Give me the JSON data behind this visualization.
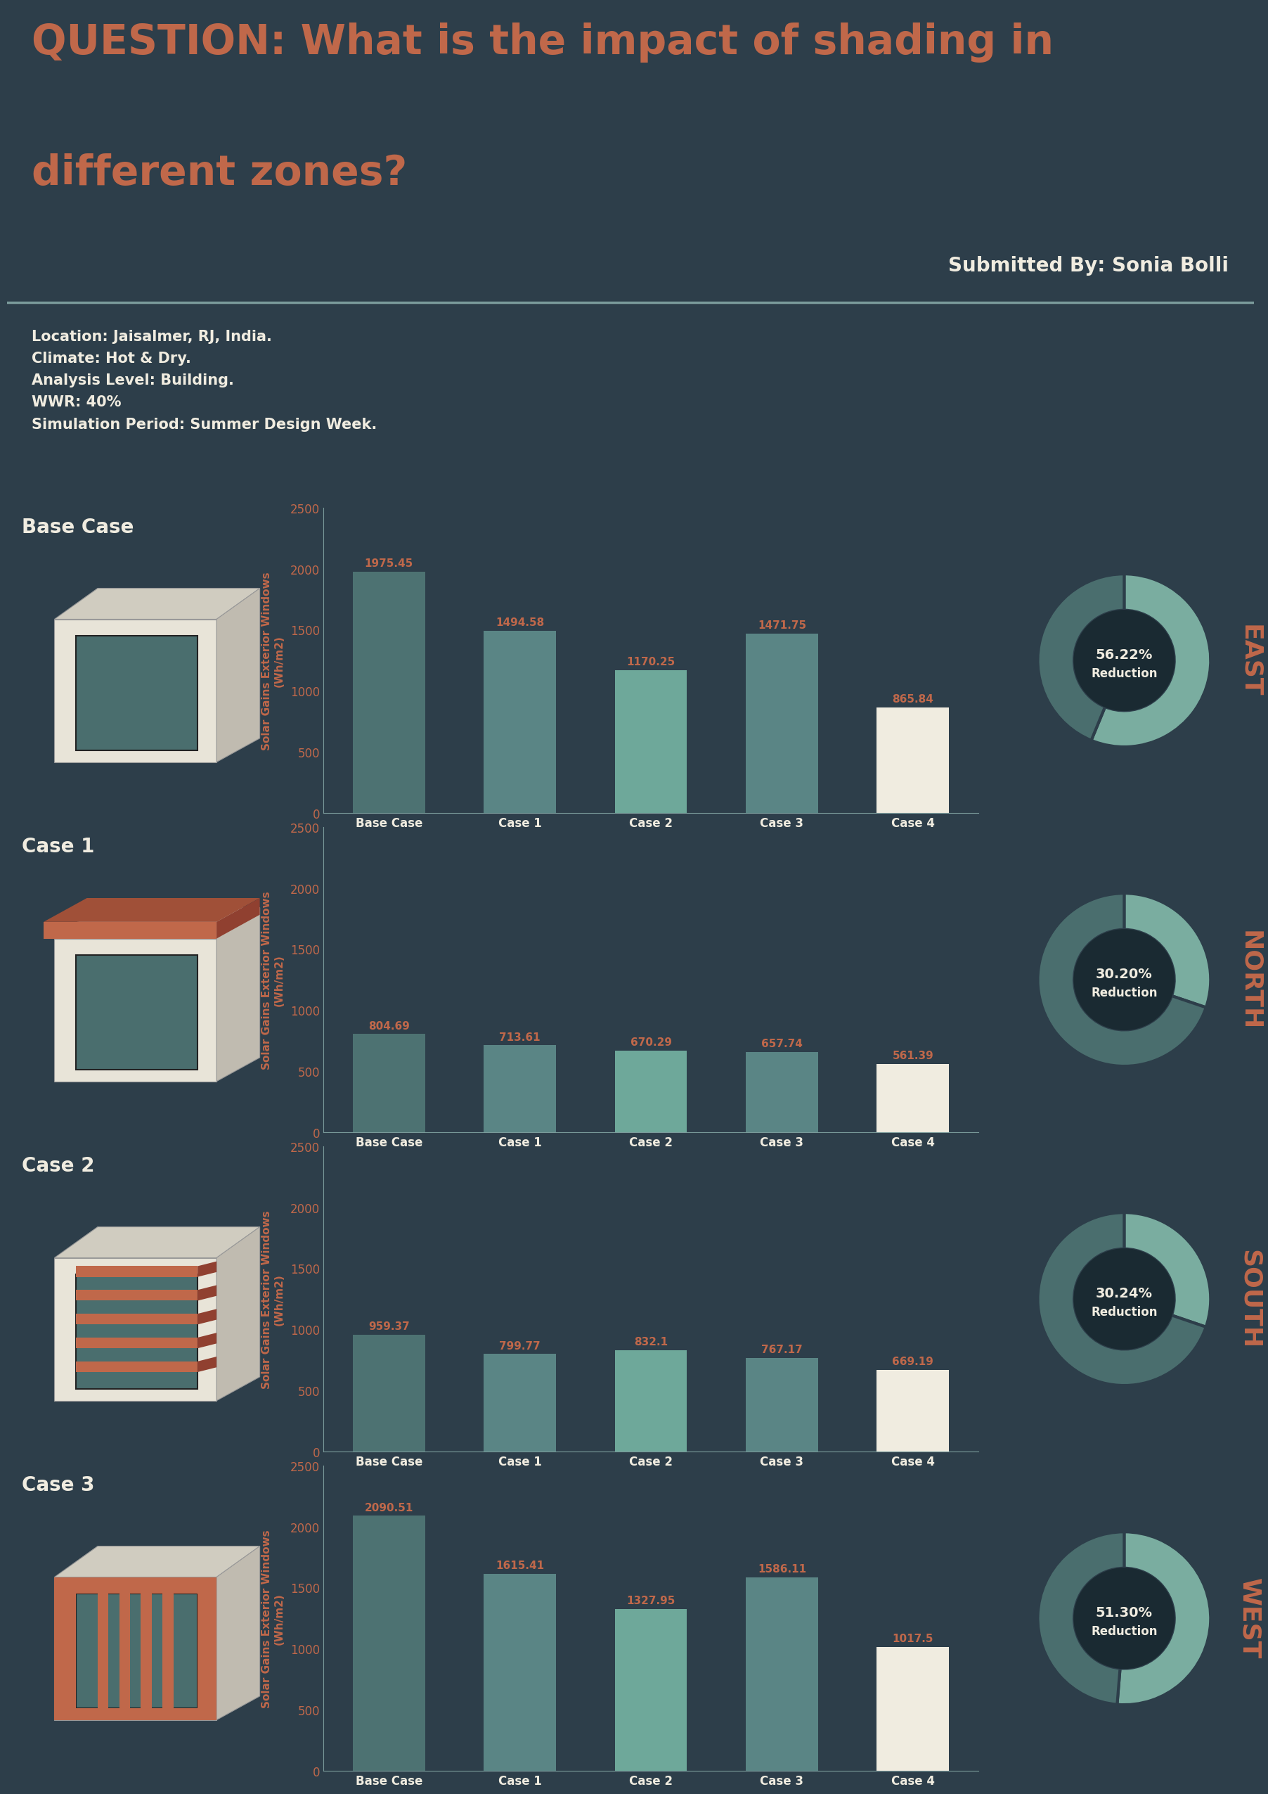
{
  "title_line1": "QUESTION: What is the impact of shading in",
  "title_line2": "different zones?",
  "subtitle": "Submitted By: Sonia Bolli",
  "info_lines": [
    "Location: Jaisalmer, RJ, India.",
    "Climate: Hot & Dry.",
    "Analysis Level: Building.",
    "WWR: 40%",
    "Simulation Period: Summer Design Week."
  ],
  "background_color": "#2d3e4a",
  "panel_color": "#3a5060",
  "bar_colors": [
    "#4d7272",
    "#5a8585",
    "#6ea89a",
    "#5a8585",
    "#f0ece0"
  ],
  "charts": [
    {
      "zone": "EAST",
      "case_label": "Base Case",
      "values": [
        1975.45,
        1494.58,
        1170.25,
        1471.75,
        865.84
      ],
      "reduction": "56.22%",
      "pie_ratio": 0.5622
    },
    {
      "zone": "NORTH",
      "case_label": "Case 1",
      "values": [
        804.69,
        713.61,
        670.29,
        657.74,
        561.39
      ],
      "reduction": "30.20%",
      "pie_ratio": 0.302
    },
    {
      "zone": "SOUTH",
      "case_label": "Case 2",
      "values": [
        959.37,
        799.77,
        832.1,
        767.17,
        669.19
      ],
      "reduction": "30.24%",
      "pie_ratio": 0.3024
    },
    {
      "zone": "WEST",
      "case_label": "Case 3",
      "values": [
        2090.51,
        1615.41,
        1327.95,
        1586.11,
        1017.5
      ],
      "reduction": "51.30%",
      "pie_ratio": 0.513
    }
  ],
  "categories": [
    "Base Case",
    "Case 1",
    "Case 2",
    "Case 3",
    "Case 4"
  ],
  "ylim": [
    0,
    2500
  ],
  "yticks": [
    0,
    500,
    1000,
    1500,
    2000,
    2500
  ],
  "ylabel": "Solar Gains Exterior Windows\n(Wh/m2)",
  "title_color": "#c0684a",
  "text_color": "#f0ece0",
  "value_color": "#c0684a",
  "pie_dark": "#4a6e6e",
  "pie_light": "#7aada0",
  "pie_center_color": "#1a2a32",
  "pie_text_color": "#f0ece0",
  "divider_color": "#7a9a9a",
  "zone_color": "#c0684a",
  "img_bg": "#3a5060",
  "box_front": "#e8e4d8",
  "box_top": "#d0ccc0",
  "box_side": "#c0bbb0",
  "box_opening": "#4a6e6e",
  "shading_color": "#c0684a"
}
